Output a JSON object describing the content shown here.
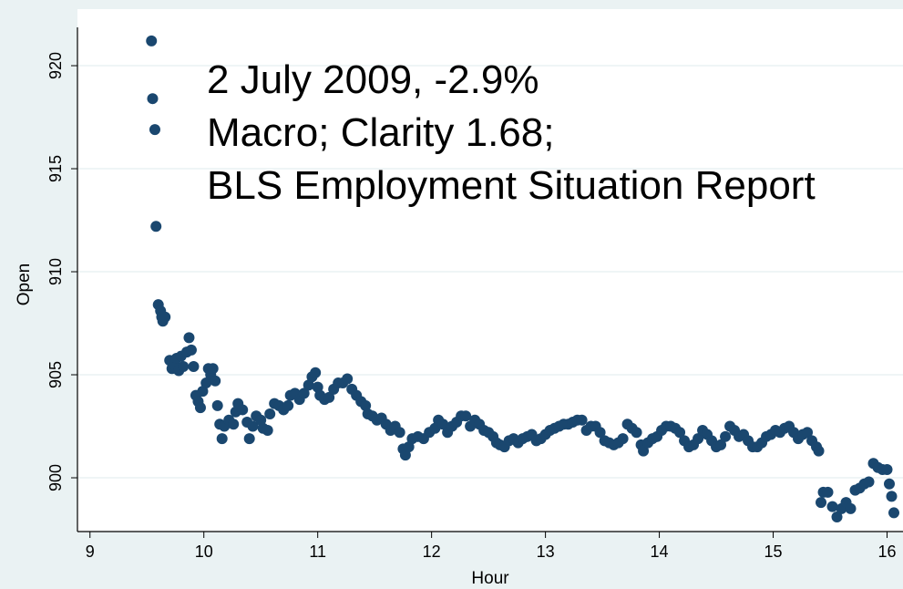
{
  "chart_data": {
    "type": "scatter",
    "annotations": [
      "2 July 2009, -2.9%",
      "Macro; Clarity 1.68;",
      "BLS Employment Situation Report"
    ],
    "x_label": "Hour",
    "y_label": "Open",
    "xlim": [
      8.89,
      16.14
    ],
    "ylim": [
      897.39,
      921.86
    ],
    "xticks": [
      9,
      10,
      11,
      12,
      13,
      14,
      15,
      16
    ],
    "yticks": [
      900,
      905,
      910,
      915,
      920
    ],
    "grid": true,
    "x": [
      9.54,
      9.55,
      9.57,
      9.58,
      9.6,
      9.62,
      9.63,
      9.64,
      9.66,
      9.7,
      9.72,
      9.74,
      9.76,
      9.78,
      9.8,
      9.82,
      9.85,
      9.87,
      9.89,
      9.91,
      9.93,
      9.95,
      9.97,
      9.99,
      10.02,
      10.04,
      10.06,
      10.08,
      10.1,
      10.12,
      10.14,
      10.16,
      10.18,
      10.22,
      10.26,
      10.28,
      10.3,
      10.34,
      10.38,
      10.4,
      10.43,
      10.46,
      10.5,
      10.52,
      10.56,
      10.58,
      10.62,
      10.66,
      10.7,
      10.74,
      10.76,
      10.8,
      10.84,
      10.88,
      10.92,
      10.95,
      10.98,
      11.0,
      11.02,
      11.06,
      11.1,
      11.14,
      11.18,
      11.22,
      11.26,
      11.3,
      11.34,
      11.38,
      11.42,
      11.44,
      11.48,
      11.52,
      11.56,
      11.6,
      11.64,
      11.68,
      11.72,
      11.75,
      11.77,
      11.8,
      11.83,
      11.88,
      11.93,
      11.98,
      12.03,
      12.06,
      12.1,
      12.14,
      12.18,
      12.22,
      12.26,
      12.3,
      12.34,
      12.38,
      12.42,
      12.46,
      12.5,
      12.54,
      12.57,
      12.6,
      12.64,
      12.68,
      12.72,
      12.76,
      12.8,
      12.84,
      12.88,
      12.92,
      12.96,
      13.0,
      13.04,
      13.08,
      13.12,
      13.16,
      13.2,
      13.24,
      13.28,
      13.32,
      13.36,
      13.4,
      13.44,
      13.48,
      13.52,
      13.56,
      13.6,
      13.64,
      13.68,
      13.72,
      13.76,
      13.8,
      13.84,
      13.86,
      13.9,
      13.94,
      13.98,
      14.02,
      14.06,
      14.1,
      14.14,
      14.18,
      14.22,
      14.26,
      14.3,
      14.34,
      14.38,
      14.42,
      14.46,
      14.5,
      14.54,
      14.58,
      14.62,
      14.66,
      14.7,
      14.74,
      14.78,
      14.82,
      14.86,
      14.9,
      14.94,
      14.98,
      15.02,
      15.06,
      15.1,
      15.14,
      15.18,
      15.22,
      15.26,
      15.3,
      15.34,
      15.38,
      15.4,
      15.42,
      15.44,
      15.48,
      15.52,
      15.56,
      15.6,
      15.64,
      15.68,
      15.72,
      15.76,
      15.8,
      15.84,
      15.88,
      15.92,
      15.96,
      16.0,
      16.02,
      16.04,
      16.06
    ],
    "series": [
      {
        "name": "Open",
        "color": "#1a476f",
        "values": [
          921.2,
          918.4,
          916.9,
          912.2,
          908.4,
          908.1,
          907.8,
          907.6,
          907.8,
          905.7,
          905.3,
          905.5,
          905.8,
          905.2,
          905.9,
          905.4,
          906.1,
          906.8,
          906.2,
          905.4,
          904.0,
          903.7,
          903.4,
          904.2,
          904.6,
          905.3,
          905.0,
          905.3,
          904.7,
          903.5,
          902.6,
          901.9,
          902.5,
          902.8,
          902.6,
          903.2,
          903.6,
          903.3,
          902.7,
          901.9,
          902.5,
          903.0,
          902.8,
          902.4,
          902.3,
          903.1,
          903.6,
          903.5,
          903.3,
          903.5,
          904.0,
          904.1,
          903.8,
          904.1,
          904.5,
          904.9,
          905.1,
          904.4,
          904.0,
          903.8,
          903.9,
          904.3,
          904.6,
          904.6,
          904.8,
          904.3,
          904.0,
          903.7,
          903.5,
          903.1,
          903.0,
          902.8,
          902.9,
          902.6,
          902.3,
          902.5,
          902.2,
          901.4,
          901.1,
          901.5,
          901.9,
          902.0,
          901.9,
          902.2,
          902.4,
          902.8,
          902.6,
          902.2,
          902.5,
          902.7,
          903.0,
          903.0,
          902.5,
          902.8,
          902.6,
          902.3,
          902.2,
          902.0,
          901.7,
          901.6,
          901.5,
          901.8,
          901.9,
          901.7,
          901.9,
          902.0,
          902.1,
          901.8,
          901.9,
          902.1,
          902.3,
          902.4,
          902.5,
          902.6,
          902.6,
          902.7,
          902.8,
          902.8,
          902.3,
          902.5,
          902.5,
          902.2,
          901.8,
          901.7,
          901.6,
          901.7,
          901.9,
          902.6,
          902.4,
          902.2,
          901.6,
          901.3,
          901.7,
          901.9,
          902.0,
          902.3,
          902.5,
          902.5,
          902.4,
          902.2,
          901.8,
          901.5,
          901.6,
          901.9,
          902.3,
          902.1,
          901.8,
          901.5,
          901.6,
          902.0,
          902.5,
          902.3,
          902.0,
          902.1,
          901.8,
          901.5,
          901.5,
          901.7,
          902.0,
          902.1,
          902.3,
          902.2,
          902.4,
          902.5,
          902.2,
          901.9,
          902.1,
          902.2,
          901.8,
          901.5,
          901.3,
          898.8,
          899.3,
          899.3,
          898.6,
          898.1,
          898.5,
          898.8,
          898.5,
          899.4,
          899.5,
          899.7,
          899.8,
          900.7,
          900.5,
          900.4,
          900.4,
          899.7,
          899.1,
          898.3
        ]
      }
    ]
  }
}
